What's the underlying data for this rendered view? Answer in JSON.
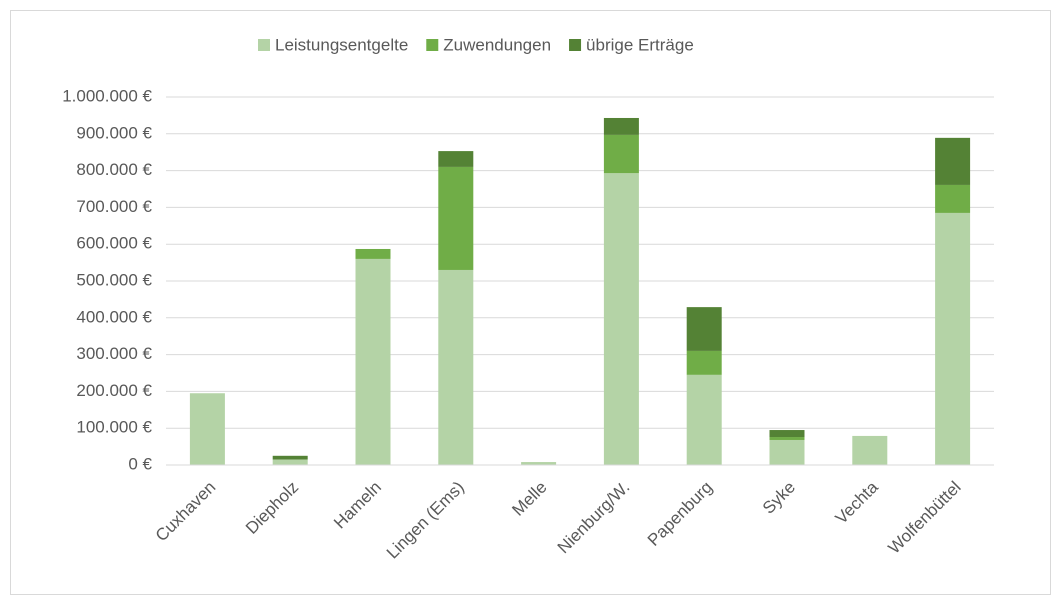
{
  "chart_data": {
    "type": "stacked_bar",
    "categories": [
      "Cuxhaven",
      "Diepholz",
      "Hameln",
      "Lingen (Ems)",
      "Melle",
      "Nienburg/W.",
      "Papenburg",
      "Syke",
      "Vechta",
      "Wolfenbüttel"
    ],
    "series": [
      {
        "name": "Leistungsentgelte",
        "color": "#b4d3a6",
        "values": [
          195000,
          15000,
          560000,
          530000,
          8000,
          793000,
          245000,
          68000,
          79000,
          685000
        ]
      },
      {
        "name": "Zuwendungen",
        "color": "#70ad47",
        "values": [
          0,
          0,
          27000,
          280000,
          0,
          104000,
          65000,
          8000,
          0,
          76000
        ]
      },
      {
        "name": "übrige Erträge",
        "color": "#548235",
        "values": [
          0,
          10000,
          0,
          43000,
          0,
          46000,
          119000,
          19000,
          0,
          128000
        ]
      }
    ],
    "ylim": [
      0,
      1000000
    ],
    "yticks": [
      {
        "value": 0,
        "label": "0 €"
      },
      {
        "value": 100000,
        "label": "100.000 €"
      },
      {
        "value": 200000,
        "label": "200.000 €"
      },
      {
        "value": 300000,
        "label": "300.000 €"
      },
      {
        "value": 400000,
        "label": "400.000 €"
      },
      {
        "value": 500000,
        "label": "500.000 €"
      },
      {
        "value": 600000,
        "label": "600.000 €"
      },
      {
        "value": 700000,
        "label": "700.000 €"
      },
      {
        "value": 800000,
        "label": "800.000 €"
      },
      {
        "value": 900000,
        "label": "900.000 €"
      },
      {
        "value": 1000000,
        "label": "1.000.000 €"
      }
    ],
    "grid": true,
    "legend": "top"
  }
}
